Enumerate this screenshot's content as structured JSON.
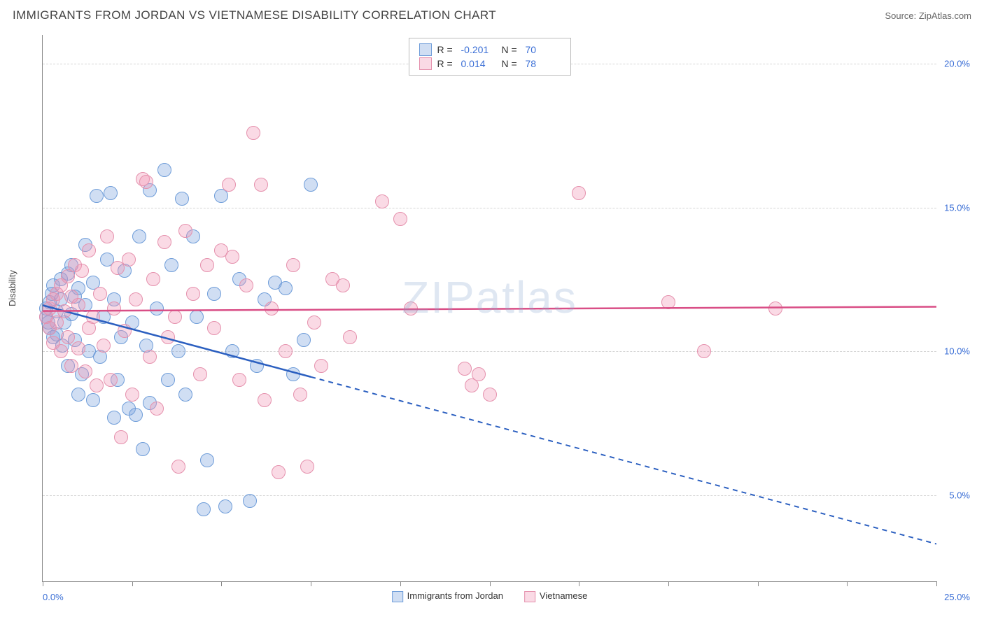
{
  "header": {
    "title": "IMMIGRANTS FROM JORDAN VS VIETNAMESE DISABILITY CORRELATION CHART",
    "source": "Source: ZipAtlas.com"
  },
  "chart": {
    "type": "scatter",
    "ylabel": "Disability",
    "watermark": "ZIPatlas",
    "xlim": [
      0,
      25
    ],
    "ylim": [
      2,
      21
    ],
    "xticks": [
      0,
      2.5,
      5,
      7.5,
      10,
      12.5,
      15,
      17.5,
      20,
      22.5,
      25
    ],
    "yticks": [
      5,
      10,
      15,
      20
    ],
    "ytick_labels": [
      "5.0%",
      "10.0%",
      "15.0%",
      "20.0%"
    ],
    "xmin_label": "0.0%",
    "xmax_label": "25.0%",
    "background_color": "#ffffff",
    "grid_color": "#d5d5d5",
    "axis_color": "#888888",
    "tick_label_color": "#3b6fd6",
    "marker_radius": 10,
    "series": [
      {
        "name": "Immigrants from Jordan",
        "fill": "rgba(120,160,220,0.35)",
        "stroke": "#6f9dd9",
        "line_color": "#2b5fc0",
        "R": "-0.201",
        "N": "70",
        "trend": {
          "x1": 0,
          "y1": 11.6,
          "x2": 25,
          "y2": 3.3,
          "solid_until_x": 7.5
        },
        "points": [
          [
            0.1,
            11.5
          ],
          [
            0.1,
            11.2
          ],
          [
            0.2,
            11.7
          ],
          [
            0.2,
            10.8
          ],
          [
            0.15,
            11.0
          ],
          [
            0.25,
            12.0
          ],
          [
            0.3,
            10.5
          ],
          [
            0.3,
            12.3
          ],
          [
            0.4,
            11.4
          ],
          [
            0.4,
            10.6
          ],
          [
            0.5,
            11.8
          ],
          [
            0.5,
            12.5
          ],
          [
            0.55,
            10.2
          ],
          [
            0.6,
            11.0
          ],
          [
            0.7,
            12.7
          ],
          [
            0.7,
            9.5
          ],
          [
            0.8,
            11.3
          ],
          [
            0.8,
            13.0
          ],
          [
            0.9,
            10.4
          ],
          [
            0.9,
            11.9
          ],
          [
            1.0,
            12.2
          ],
          [
            1.0,
            8.5
          ],
          [
            1.1,
            9.2
          ],
          [
            1.2,
            13.7
          ],
          [
            1.2,
            11.6
          ],
          [
            1.3,
            10.0
          ],
          [
            1.4,
            8.3
          ],
          [
            1.4,
            12.4
          ],
          [
            1.5,
            15.4
          ],
          [
            1.6,
            9.8
          ],
          [
            1.7,
            11.2
          ],
          [
            1.8,
            13.2
          ],
          [
            1.9,
            15.5
          ],
          [
            2.0,
            7.7
          ],
          [
            2.0,
            11.8
          ],
          [
            2.1,
            9.0
          ],
          [
            2.2,
            10.5
          ],
          [
            2.3,
            12.8
          ],
          [
            2.4,
            8.0
          ],
          [
            2.5,
            11.0
          ],
          [
            2.6,
            7.8
          ],
          [
            2.7,
            14.0
          ],
          [
            2.8,
            6.6
          ],
          [
            2.9,
            10.2
          ],
          [
            3.0,
            15.6
          ],
          [
            3.0,
            8.2
          ],
          [
            3.2,
            11.5
          ],
          [
            3.4,
            16.3
          ],
          [
            3.5,
            9.0
          ],
          [
            3.6,
            13.0
          ],
          [
            3.8,
            10.0
          ],
          [
            3.9,
            15.3
          ],
          [
            4.0,
            8.5
          ],
          [
            4.2,
            14.0
          ],
          [
            4.3,
            11.2
          ],
          [
            4.5,
            4.5
          ],
          [
            4.6,
            6.2
          ],
          [
            4.8,
            12.0
          ],
          [
            5.0,
            15.4
          ],
          [
            5.1,
            4.6
          ],
          [
            5.3,
            10.0
          ],
          [
            5.5,
            12.5
          ],
          [
            5.8,
            4.8
          ],
          [
            6.0,
            9.5
          ],
          [
            6.2,
            11.8
          ],
          [
            6.5,
            12.4
          ],
          [
            6.8,
            12.2
          ],
          [
            7.0,
            9.2
          ],
          [
            7.3,
            10.4
          ],
          [
            7.5,
            15.8
          ]
        ]
      },
      {
        "name": "Vietnamese",
        "fill": "rgba(240,150,180,0.35)",
        "stroke": "#e591ad",
        "line_color": "#d94e86",
        "R": "0.014",
        "N": "78",
        "trend": {
          "x1": 0,
          "y1": 11.4,
          "x2": 25,
          "y2": 11.55,
          "solid_until_x": 25
        },
        "points": [
          [
            0.1,
            11.2
          ],
          [
            0.2,
            11.5
          ],
          [
            0.2,
            10.8
          ],
          [
            0.3,
            11.8
          ],
          [
            0.3,
            10.3
          ],
          [
            0.4,
            12.0
          ],
          [
            0.4,
            11.0
          ],
          [
            0.5,
            10.0
          ],
          [
            0.5,
            12.3
          ],
          [
            0.6,
            11.4
          ],
          [
            0.7,
            10.5
          ],
          [
            0.7,
            12.6
          ],
          [
            0.8,
            9.5
          ],
          [
            0.8,
            11.9
          ],
          [
            0.9,
            13.0
          ],
          [
            1.0,
            10.1
          ],
          [
            1.0,
            11.6
          ],
          [
            1.1,
            12.8
          ],
          [
            1.2,
            9.3
          ],
          [
            1.3,
            10.8
          ],
          [
            1.3,
            13.5
          ],
          [
            1.4,
            11.2
          ],
          [
            1.5,
            8.8
          ],
          [
            1.6,
            12.0
          ],
          [
            1.7,
            10.2
          ],
          [
            1.8,
            14.0
          ],
          [
            1.9,
            9.0
          ],
          [
            2.0,
            11.5
          ],
          [
            2.1,
            12.9
          ],
          [
            2.2,
            7.0
          ],
          [
            2.3,
            10.7
          ],
          [
            2.4,
            13.2
          ],
          [
            2.5,
            8.5
          ],
          [
            2.6,
            11.8
          ],
          [
            2.8,
            16.0
          ],
          [
            2.9,
            15.9
          ],
          [
            3.0,
            9.8
          ],
          [
            3.1,
            12.5
          ],
          [
            3.2,
            8.0
          ],
          [
            3.4,
            13.8
          ],
          [
            3.5,
            10.5
          ],
          [
            3.7,
            11.2
          ],
          [
            3.8,
            6.0
          ],
          [
            4.0,
            14.2
          ],
          [
            4.2,
            12.0
          ],
          [
            4.4,
            9.2
          ],
          [
            4.6,
            13.0
          ],
          [
            4.8,
            10.8
          ],
          [
            5.0,
            13.5
          ],
          [
            5.2,
            15.8
          ],
          [
            5.3,
            13.3
          ],
          [
            5.5,
            9.0
          ],
          [
            5.7,
            12.3
          ],
          [
            5.9,
            17.6
          ],
          [
            6.1,
            15.8
          ],
          [
            6.2,
            8.3
          ],
          [
            6.4,
            11.5
          ],
          [
            6.6,
            5.8
          ],
          [
            6.8,
            10.0
          ],
          [
            7.0,
            13.0
          ],
          [
            7.2,
            8.5
          ],
          [
            7.4,
            6.0
          ],
          [
            7.6,
            11.0
          ],
          [
            7.8,
            9.5
          ],
          [
            8.1,
            12.5
          ],
          [
            8.4,
            12.3
          ],
          [
            8.6,
            10.5
          ],
          [
            9.5,
            15.2
          ],
          [
            10.0,
            14.6
          ],
          [
            10.3,
            11.5
          ],
          [
            11.8,
            9.4
          ],
          [
            12.0,
            8.8
          ],
          [
            12.2,
            9.2
          ],
          [
            12.5,
            8.5
          ],
          [
            15.0,
            15.5
          ],
          [
            17.5,
            11.7
          ],
          [
            18.5,
            10.0
          ],
          [
            20.5,
            11.5
          ]
        ]
      }
    ]
  }
}
